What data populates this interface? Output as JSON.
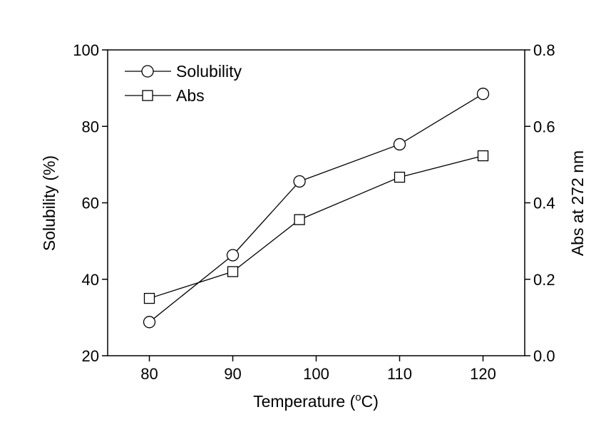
{
  "chart_data": {
    "type": "line",
    "title": "",
    "xlabel_main": "Temperature (",
    "xlabel_sup": "o",
    "xlabel_end": "C)",
    "ylabel_left": "Solubility (%)",
    "ylabel_right": "Abs at 272 nm",
    "xlim": [
      75,
      125
    ],
    "ylim_left": [
      20,
      100
    ],
    "ylim_right": [
      0.0,
      0.8
    ],
    "x_ticks": [
      "80",
      "90",
      "100",
      "110",
      "120"
    ],
    "y_left_ticks": [
      "20",
      "40",
      "60",
      "80",
      "100"
    ],
    "y_right_ticks": [
      "0.0",
      "0.2",
      "0.4",
      "0.6",
      "0.8"
    ],
    "grid": false,
    "legend_position": "top-left",
    "series": [
      {
        "name": "Solubility",
        "axis": "left",
        "marker": "circle",
        "x": [
          80,
          90,
          98,
          110,
          120
        ],
        "y": [
          28.8,
          46.3,
          65.6,
          75.3,
          88.5
        ]
      },
      {
        "name": "Abs",
        "axis": "right",
        "marker": "square",
        "x": [
          80,
          90,
          98,
          110,
          120
        ],
        "y": [
          0.15,
          0.22,
          0.356,
          0.467,
          0.523
        ]
      }
    ]
  }
}
